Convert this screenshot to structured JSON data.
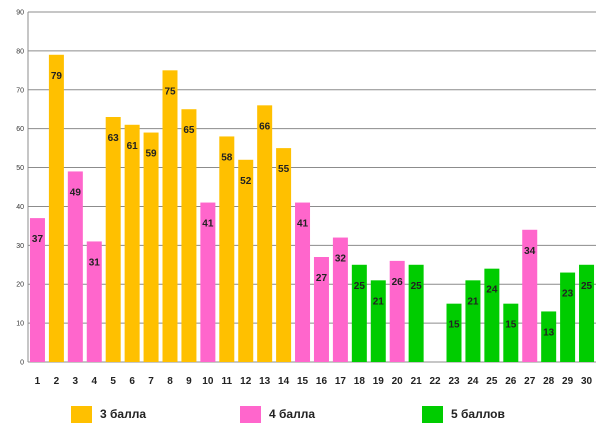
{
  "chart_data": {
    "type": "bar",
    "title": "",
    "xlabel": "",
    "ylabel": "",
    "ylim": [
      0,
      90
    ],
    "yticks": [
      "0",
      "10",
      "20",
      "30",
      "40",
      "50",
      "60",
      "70",
      "80",
      "90"
    ],
    "grid": true,
    "legend_position": "bottom",
    "categories": [
      "1",
      "2",
      "3",
      "4",
      "5",
      "6",
      "7",
      "8",
      "9",
      "10",
      "11",
      "12",
      "13",
      "14",
      "15",
      "16",
      "17",
      "18",
      "19",
      "20",
      "21",
      "22",
      "23",
      "24",
      "25",
      "26",
      "27",
      "28",
      "29",
      "30"
    ],
    "values": [
      37,
      79,
      49,
      31,
      63,
      61,
      59,
      75,
      65,
      41,
      58,
      52,
      66,
      55,
      41,
      27,
      32,
      25,
      21,
      26,
      25,
      null,
      15,
      21,
      24,
      15,
      34,
      13,
      23,
      25
    ],
    "groups": [
      "4 балла",
      "3 балла",
      "4 балла",
      "4 балла",
      "3 балла",
      "3 балла",
      "3 балла",
      "3 балла",
      "3 балла",
      "4 балла",
      "3 балла",
      "3 балла",
      "3 балла",
      "3 балла",
      "4 балла",
      "4 балла",
      "4 балла",
      "5 баллов",
      "5 баллов",
      "4 балла",
      "5 баллов",
      "",
      "5 баллов",
      "5 баллов",
      "5 баллов",
      "5 баллов",
      "4 балла",
      "5 баллов",
      "5 баллов",
      "5 баллов"
    ],
    "legend": [
      {
        "label": "3 балла",
        "color": "#FFC000"
      },
      {
        "label": "4 балла",
        "color": "#FF66CC"
      },
      {
        "label": "5 баллов",
        "color": "#00CC00"
      }
    ]
  }
}
